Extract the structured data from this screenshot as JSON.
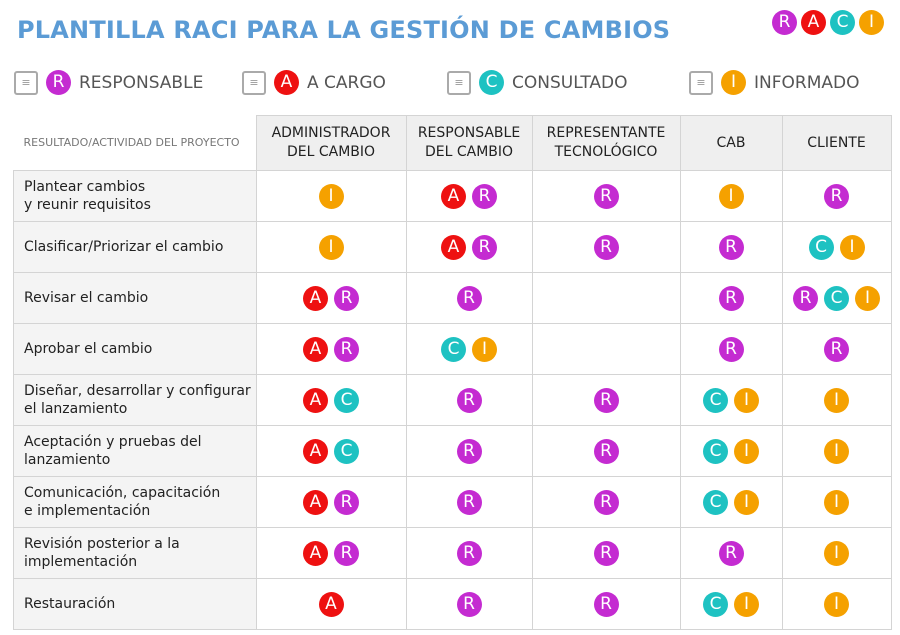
{
  "title": "PLANTILLA RACI PARA LA GESTIÓN DE CAMBIOS",
  "logo": [
    "R",
    "A",
    "C",
    "I"
  ],
  "colors": {
    "R": "#c42bd1",
    "A": "#ee1111",
    "C": "#1ec2c2",
    "I": "#f5a100",
    "title": "#5b9bd5"
  },
  "legend": [
    {
      "letter": "R",
      "label": "RESPONSABLE",
      "icon": "checklist-icon"
    },
    {
      "letter": "A",
      "label": "A CARGO",
      "icon": "search-people-icon"
    },
    {
      "letter": "C",
      "label": "CONSULTADO",
      "icon": "contact-card-download-icon"
    },
    {
      "letter": "I",
      "label": "INFORMADO",
      "icon": "contact-card-upload-icon"
    }
  ],
  "table": {
    "header_label": "RESULTADO/ACTIVIDAD DEL PROYECTO",
    "columns": [
      "ADMINISTRADOR\nDEL CAMBIO",
      "RESPONSABLE\nDEL CAMBIO",
      "REPRESENTANTE\nTECNOLÓGICO",
      "CAB",
      "CLIENTE"
    ],
    "rows": [
      {
        "activity": "Plantear cambios\ny reunir requisitos",
        "cells": [
          [
            "I"
          ],
          [
            "A",
            "R"
          ],
          [
            "R"
          ],
          [
            "I"
          ],
          [
            "R"
          ]
        ]
      },
      {
        "activity": "Clasificar/Priorizar el cambio",
        "cells": [
          [
            "I"
          ],
          [
            "A",
            "R"
          ],
          [
            "R"
          ],
          [
            "R"
          ],
          [
            "C",
            "I"
          ]
        ]
      },
      {
        "activity": "Revisar el cambio",
        "cells": [
          [
            "A",
            "R"
          ],
          [
            "R"
          ],
          [],
          [
            "R"
          ],
          [
            "R",
            "C",
            "I"
          ]
        ]
      },
      {
        "activity": "Aprobar el cambio",
        "cells": [
          [
            "A",
            "R"
          ],
          [
            "C",
            "I"
          ],
          [],
          [
            "R"
          ],
          [
            "R"
          ]
        ]
      },
      {
        "activity": "Diseñar, desarrollar y configurar\nel lanzamiento",
        "cells": [
          [
            "A",
            "C"
          ],
          [
            "R"
          ],
          [
            "R"
          ],
          [
            "C",
            "I"
          ],
          [
            "I"
          ]
        ]
      },
      {
        "activity": "Aceptación y pruebas del\nlanzamiento",
        "cells": [
          [
            "A",
            "C"
          ],
          [
            "R"
          ],
          [
            "R"
          ],
          [
            "C",
            "I"
          ],
          [
            "I"
          ]
        ]
      },
      {
        "activity": "Comunicación, capacitación\ne implementación",
        "cells": [
          [
            "A",
            "R"
          ],
          [
            "R"
          ],
          [
            "R"
          ],
          [
            "C",
            "I"
          ],
          [
            "I"
          ]
        ]
      },
      {
        "activity": "Revisión posterior a la\nimplementación",
        "cells": [
          [
            "A",
            "R"
          ],
          [
            "R"
          ],
          [
            "R"
          ],
          [
            "R"
          ],
          [
            "I"
          ]
        ]
      },
      {
        "activity": "Restauración",
        "cells": [
          [
            "A"
          ],
          [
            "R"
          ],
          [
            "R"
          ],
          [
            "C",
            "I"
          ],
          [
            "I"
          ]
        ]
      }
    ]
  }
}
